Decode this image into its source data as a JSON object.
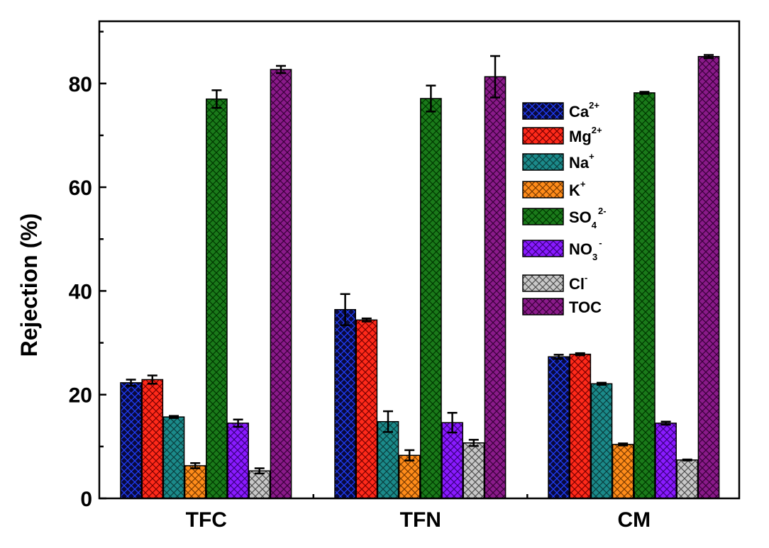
{
  "chart_data": {
    "type": "bar",
    "categories": [
      "TFC",
      "TFN",
      "CM"
    ],
    "ylabel": "Rejection (%)",
    "xlabel": "",
    "ylim": [
      0,
      92
    ],
    "yticks": [
      0,
      20,
      40,
      60,
      80
    ],
    "series": [
      {
        "name": "Ca2+",
        "label_main": "Ca",
        "label_sup": "2+",
        "label_sub": "",
        "color": "#0a0a3c",
        "hatch": "#1f3fff",
        "values": [
          22.3,
          36.4,
          27.3
        ],
        "errors": [
          0.6,
          3.0,
          0.4
        ]
      },
      {
        "name": "Mg2+",
        "label_main": "Mg",
        "label_sup": "2+",
        "label_sub": "",
        "color": "#ff2a1a",
        "hatch": "#7a0000",
        "values": [
          22.9,
          34.4,
          27.8
        ],
        "errors": [
          0.8,
          0.3,
          0.2
        ]
      },
      {
        "name": "Na+",
        "label_main": "Na",
        "label_sup": "+",
        "label_sub": "",
        "color": "#1b8a8a",
        "hatch": "#0a3f3f",
        "values": [
          15.7,
          14.8,
          22.1
        ],
        "errors": [
          0.2,
          2.0,
          0.2
        ]
      },
      {
        "name": "K+",
        "label_main": "K",
        "label_sup": "+",
        "label_sub": "",
        "color": "#ff8c1a",
        "hatch": "#7a3a00",
        "values": [
          6.3,
          8.3,
          10.4
        ],
        "errors": [
          0.5,
          1.0,
          0.2
        ]
      },
      {
        "name": "SO42-",
        "label_main": "SO",
        "label_sup": "2-",
        "label_sub": "4",
        "color": "#1a7a1a",
        "hatch": "#003800",
        "values": [
          77.0,
          77.1,
          78.2
        ],
        "errors": [
          1.7,
          2.5,
          0.2
        ]
      },
      {
        "name": "NO3-",
        "label_main": "NO",
        "label_sup": "-",
        "label_sub": "3",
        "color": "#8a1aff",
        "hatch": "#3a0080",
        "values": [
          14.5,
          14.6,
          14.5
        ],
        "errors": [
          0.7,
          1.9,
          0.3
        ]
      },
      {
        "name": "Cl-",
        "label_main": "Cl",
        "label_sup": "-",
        "label_sub": "",
        "color": "#c8c8c8",
        "hatch": "#505050",
        "values": [
          5.3,
          10.7,
          7.4
        ],
        "errors": [
          0.5,
          0.6,
          0.1
        ]
      },
      {
        "name": "TOC",
        "label_main": "TOC",
        "label_sup": "",
        "label_sub": "",
        "color": "#8a1a8a",
        "hatch": "#3a003a",
        "values": [
          82.7,
          81.3,
          85.2
        ],
        "errors": [
          0.7,
          4.0,
          0.3
        ]
      }
    ],
    "legend_position": "top-right",
    "grid": false
  }
}
